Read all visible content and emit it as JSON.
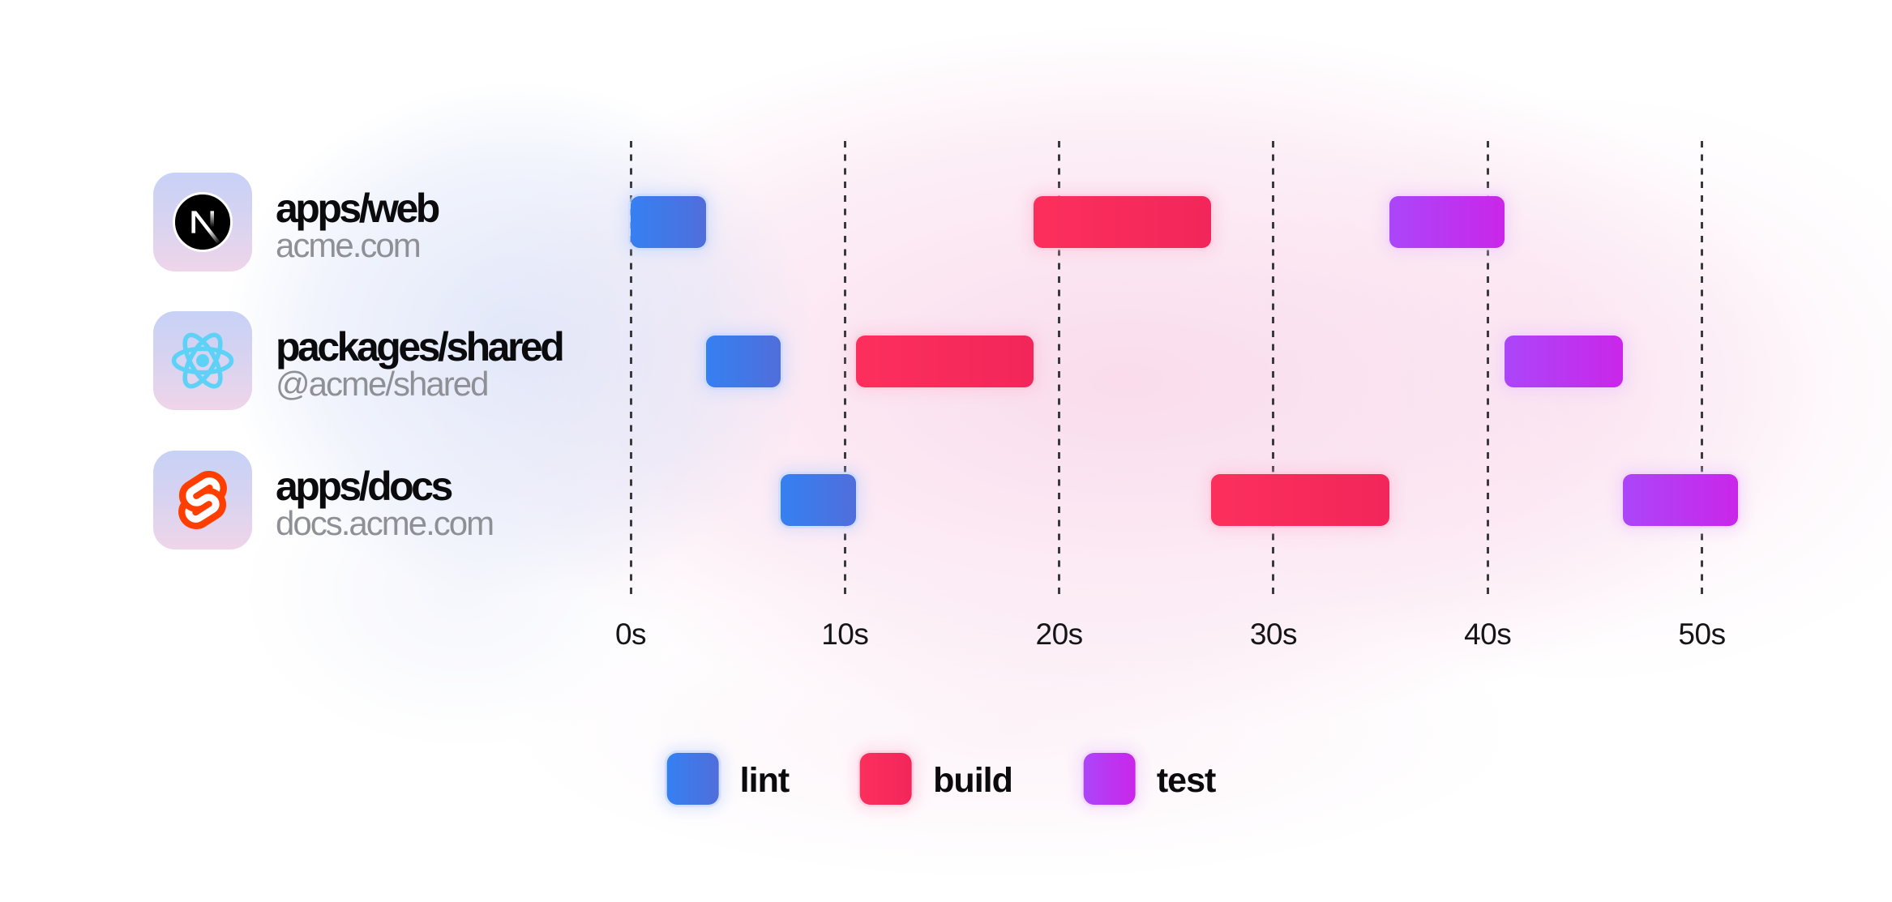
{
  "packages": [
    {
      "title": "apps/web",
      "subtitle": "acme.com",
      "icon": "nextjs-logo"
    },
    {
      "title": "packages/shared",
      "subtitle": "@acme/shared",
      "icon": "react-logo"
    },
    {
      "title": "apps/docs",
      "subtitle": "docs.acme.com",
      "icon": "svelte-logo"
    }
  ],
  "axis": {
    "tick_labels": [
      "0s",
      "10s",
      "20s",
      "30s",
      "40s",
      "50s"
    ],
    "tick_seconds": [
      0,
      10,
      20,
      30,
      40,
      50
    ]
  },
  "legend": [
    {
      "label": "lint",
      "color_start": "#3580f2",
      "color_end": "#506edb"
    },
    {
      "label": "build",
      "color_start": "#fc2f5c",
      "color_end": "#f2265a"
    },
    {
      "label": "test",
      "color_start": "#ab46f9",
      "color_end": "#ca26e9"
    }
  ],
  "chart_data": {
    "type": "bar",
    "subtype": "gantt-timeline",
    "unit": "seconds",
    "x_ticks": [
      0,
      10,
      20,
      30,
      40,
      50
    ],
    "xlim": [
      0,
      52
    ],
    "grid": "dashed-vertical",
    "legend_position": "bottom-center",
    "rows": [
      "apps/web",
      "packages/shared",
      "apps/docs"
    ],
    "tasks": [
      {
        "row": "apps/web",
        "task": "lint",
        "start": 0,
        "end": 3.5
      },
      {
        "row": "packages/shared",
        "task": "lint",
        "start": 3.5,
        "end": 7
      },
      {
        "row": "apps/docs",
        "task": "lint",
        "start": 7,
        "end": 10.5
      },
      {
        "row": "packages/shared",
        "task": "build",
        "start": 10.5,
        "end": 18.8
      },
      {
        "row": "apps/web",
        "task": "build",
        "start": 18.8,
        "end": 27.1
      },
      {
        "row": "apps/docs",
        "task": "build",
        "start": 27.1,
        "end": 35.4
      },
      {
        "row": "apps/web",
        "task": "test",
        "start": 35.4,
        "end": 40.8
      },
      {
        "row": "packages/shared",
        "task": "test",
        "start": 40.8,
        "end": 46.3
      },
      {
        "row": "apps/docs",
        "task": "test",
        "start": 46.3,
        "end": 51.7
      }
    ]
  }
}
